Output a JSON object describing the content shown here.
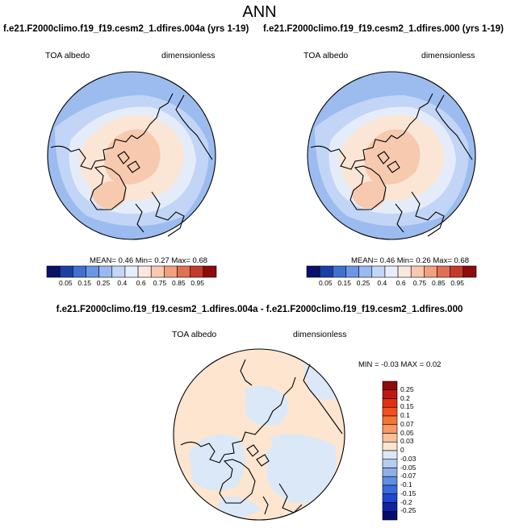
{
  "page_title": "ANN",
  "panels": [
    {
      "title": "f.e21.F2000climo.f19_f19.cesm2_1.dfires.004a (yrs 1-19)",
      "left_label": "TOA albedo",
      "right_label": "dimensionless",
      "stats": "MEAN=  0.46  Min=  0.27  Max=  0.68"
    },
    {
      "title": "f.e21.F2000climo.f19_f19.cesm2_1.dfires.000 (yrs 1-19)",
      "left_label": "TOA albedo",
      "right_label": "dimensionless",
      "stats": "MEAN=  0.46  Min=  0.26  Max=  0.68"
    },
    {
      "title": "f.e21.F2000climo.f19_f19.cesm2_1.dfires.004a - f.e21.F2000climo.f19_f19.cesm2_1.dfires.000",
      "left_label": "TOA albedo",
      "right_label": "dimensionless",
      "stats": "MIN =  -0.03 MAX =  0.02"
    }
  ],
  "colorbar_abs": {
    "ticks": [
      "0.05",
      "0.15",
      "0.25",
      "0.4",
      "0.6",
      "0.75",
      "0.85",
      "0.95"
    ],
    "colors": [
      "#08116b",
      "#1b3fa6",
      "#3f71d0",
      "#6b97e6",
      "#9ab9f2",
      "#c4d6f7",
      "#e6eefb",
      "#fbe8dc",
      "#f8c9b0",
      "#f1a080",
      "#e16f52",
      "#c53a2b",
      "#8c0b0b"
    ]
  },
  "colorbar_diff": {
    "ticks": [
      "0.25",
      "0.2",
      "0.15",
      "0.1",
      "0.07",
      "0.05",
      "0.03",
      "0",
      "-0.03",
      "-0.05",
      "-0.07",
      "-0.1",
      "-0.15",
      "-0.2",
      "-0.25"
    ],
    "colors": [
      "#8c0b0b",
      "#c0180f",
      "#e0310f",
      "#f2501c",
      "#f57436",
      "#f79a63",
      "#f9c19b",
      "#fde5cf",
      "#dbe8f8",
      "#b6cdf2",
      "#8eb0ea",
      "#5f8fe2",
      "#3a6ae0",
      "#1f46cf",
      "#0e24a3",
      "#060b6e"
    ]
  },
  "map_colors": {
    "ocean_low": "#9cbcf0",
    "ocean_mid": "#c2d5f6",
    "mid": "#e4ecfa",
    "land_pale": "#fbe6d6",
    "land_warm": "#f7c9ae",
    "diff_pos": "#fde5cf",
    "diff_neg": "#dbe8f8"
  }
}
